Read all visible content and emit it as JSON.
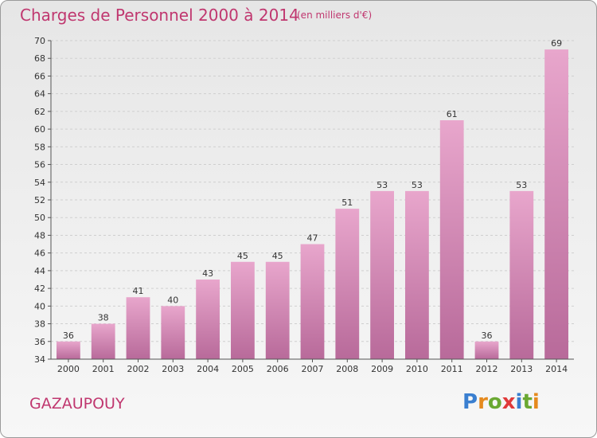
{
  "header": {
    "title": "Charges de Personnel 2000 à 2014",
    "subtitle": "(en milliers d'€)"
  },
  "footer": {
    "commune": "GAZAUPOUY",
    "logo_text": "Proxiti"
  },
  "colors": {
    "bar_top": "#e8a6cc",
    "bar_bottom": "#b86a9a",
    "accent": "#c0376f",
    "logo_letters": [
      "#3a7fd0",
      "#e58a1f",
      "#6aa832",
      "#e03a3a",
      "#3a7fd0",
      "#6aa832",
      "#e58a1f"
    ]
  },
  "chart_data": {
    "type": "bar",
    "title": "Charges de Personnel 2000 à 2014",
    "subtitle": "(en milliers d'€)",
    "categories": [
      "2000",
      "2001",
      "2002",
      "2003",
      "2004",
      "2005",
      "2006",
      "2007",
      "2008",
      "2009",
      "2010",
      "2011",
      "2012",
      "2013",
      "2014"
    ],
    "values": [
      36,
      38,
      41,
      40,
      43,
      45,
      45,
      47,
      51,
      53,
      53,
      61,
      36,
      53,
      69
    ],
    "ylim": [
      34,
      70
    ],
    "yticks": [
      34,
      36,
      38,
      40,
      42,
      44,
      46,
      48,
      50,
      52,
      54,
      56,
      58,
      60,
      62,
      64,
      66,
      68,
      70
    ],
    "grid": true,
    "legend": "none"
  }
}
